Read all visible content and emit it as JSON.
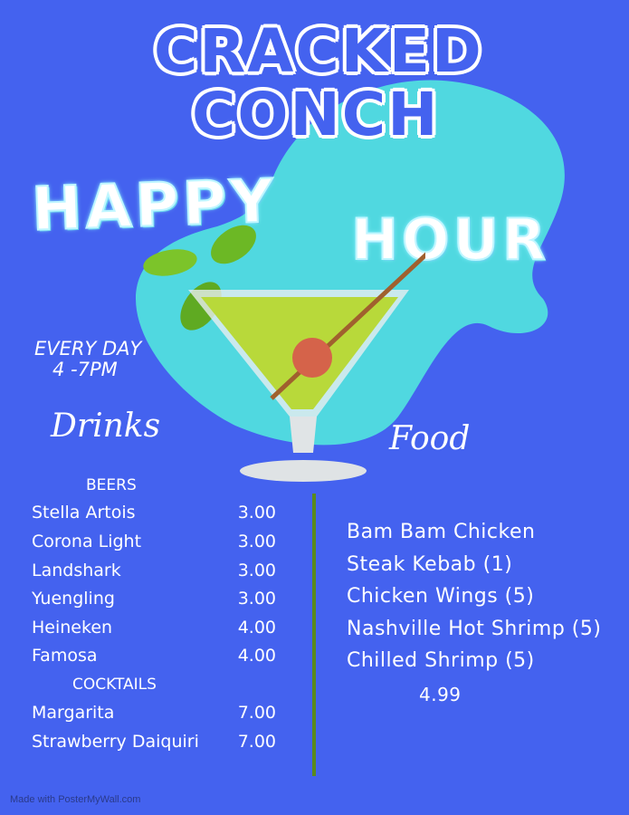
{
  "title": {
    "line1": "CRACKED",
    "line2": "CONCH"
  },
  "happy_hour": {
    "word1": "HAPPY",
    "word2": "HOUR"
  },
  "schedule": {
    "line1": "EVERY DAY",
    "line2": "4 -7PM"
  },
  "drinks": {
    "heading": "Drinks",
    "beers_heading": "BEERS",
    "beers": [
      {
        "name": "Stella Artois",
        "price": "3.00"
      },
      {
        "name": "Corona Light",
        "price": "3.00"
      },
      {
        "name": "Landshark",
        "price": "3.00"
      },
      {
        "name": "Yuengling",
        "price": "3.00"
      },
      {
        "name": "Heineken",
        "price": "4.00"
      },
      {
        "name": "Famosa",
        "price": "4.00"
      }
    ],
    "cocktails_heading": "COCKTAILS",
    "cocktails": [
      {
        "name": "Margarita",
        "price": "7.00"
      },
      {
        "name": "Strawberry Daiquiri",
        "price": "7.00"
      }
    ]
  },
  "food": {
    "heading": "Food",
    "items": [
      "Bam Bam Chicken",
      "Steak Kebab (1)",
      "Chicken Wings (5)",
      "Nashville Hot Shrimp (5)",
      "Chilled Shrimp (5)"
    ],
    "price": "4.99"
  },
  "footer": "Made with PosterMyWall.com",
  "colors": {
    "background": "#4462ef",
    "blob": "#50d8e0",
    "divider": "#5a8a1e"
  }
}
